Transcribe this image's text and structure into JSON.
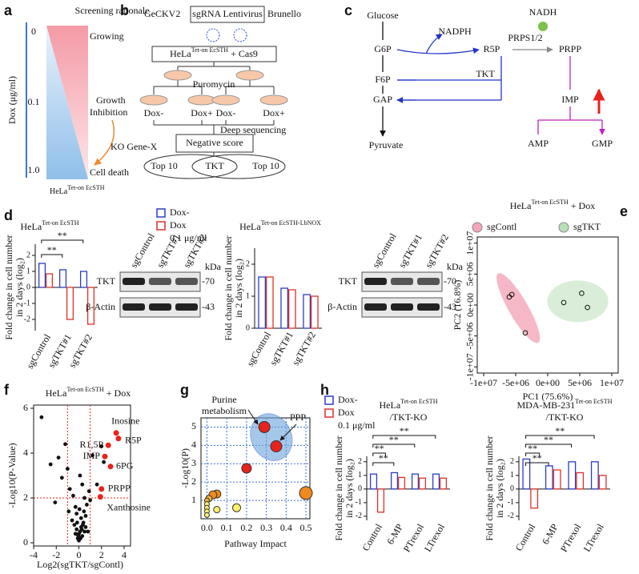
{
  "panels": {
    "a": {
      "label": "a",
      "title": "Screening rationale",
      "axis_label": "Dox (μg/ml)",
      "doses": [
        "0",
        "0.1",
        "1.0"
      ],
      "states": [
        "Growing",
        "Growth",
        "Inhibition",
        "Cell death"
      ],
      "knockout": "KO Gene-X",
      "cell": [
        "HeLa",
        "Tet-on EcSTH"
      ]
    },
    "b": {
      "label": "b",
      "library_left": "GeCKV2",
      "vector": "sgRNA Lentivirus",
      "library_right": "Brunello",
      "cell": [
        "HeLa",
        "Tet-on EcSTH",
        " + Cas9"
      ],
      "selection": "Puromycin",
      "conditions": [
        "Dox-",
        "Dox+",
        "Dox-",
        "Dox+"
      ],
      "step": "Deep sequencing",
      "score": "Negative score",
      "overlap": [
        "Top 10",
        "TKT",
        "Top 10"
      ]
    },
    "c": {
      "label": "c",
      "nodes": [
        "Glucose",
        "G6P",
        "NADPH",
        "R5P",
        "NADH",
        "PRPS1/2",
        "PRPP",
        "F6P",
        "TKT",
        "GAP",
        "IMP",
        "Pyruvate",
        "AMP",
        "GMP"
      ]
    },
    "d": {
      "label": "d",
      "legend": [
        {
          "name": "Dox-",
          "color": "#2b3cc4"
        },
        {
          "name": "Dox",
          "color": "#e0302a"
        }
      ],
      "dose": "0.1 μg/ml",
      "charts": [
        {
          "type": "bar",
          "title": [
            "HeLa",
            "Tet-on EcSTH"
          ],
          "ylabel": [
            "Fold change in cell number",
            "in 2 days (log₂)"
          ],
          "categories": [
            "sgControl",
            "sgTKT#1",
            "sgTKT#2"
          ],
          "ylim": [
            -2.7,
            2.7
          ],
          "yticks": [
            -2,
            -1,
            0,
            1,
            2
          ],
          "series": [
            {
              "color": "#2b3cc4",
              "values": [
                1.5,
                1.1,
                1.0
              ]
            },
            {
              "color": "#e0302a",
              "values": [
                0.85,
                -2.0,
                -2.3
              ]
            }
          ],
          "annotations": [
            "**",
            "**"
          ]
        },
        {
          "type": "bar",
          "title": [
            "HeLa",
            "Tet-on EcSTH-LbNOX"
          ],
          "ylabel": [
            "Fold change in cell number",
            "in 2 days (log₂)"
          ],
          "categories": [
            "sgControl",
            "sgTKT#1",
            "sgTKT#2"
          ],
          "ylim": [
            0,
            2.5
          ],
          "yticks": [
            0,
            1,
            2
          ],
          "series": [
            {
              "color": "#2b3cc4",
              "values": [
                1.6,
                1.25,
                1.05
              ]
            },
            {
              "color": "#e0302a",
              "values": [
                1.6,
                1.2,
                1.0
              ]
            }
          ],
          "annotations": []
        }
      ],
      "blots": [
        {
          "lanes": [
            "sgControl",
            "sgTKT#1",
            "sgTKT#2"
          ],
          "proteins": [
            "TKT",
            "β-Actin"
          ],
          "sizes": [
            "-70",
            "-43"
          ],
          "unit": "kDa"
        },
        {
          "lanes": [
            "sgControl",
            "sgTKT#1",
            "sgTKT#2"
          ],
          "proteins": [
            "TKT",
            "β-Actin"
          ],
          "sizes": [
            "-70",
            "-43"
          ],
          "unit": "kDa"
        }
      ]
    },
    "e": {
      "label": "e",
      "type": "scatter",
      "title": [
        "HeLa",
        "Tet-on EcSTH",
        " + Dox"
      ],
      "xlabel": "PC1 (75.6%)",
      "ylabel": "PC2 (16.8%)",
      "xlim": [
        -11000000,
        11000000
      ],
      "ylim": [
        -11000000,
        11000000
      ],
      "xticks": [
        {
          "value": -10000000,
          "label": "-1e+07"
        },
        {
          "value": -5000000,
          "label": "-5e+06"
        },
        {
          "value": 0,
          "label": "0e+00"
        },
        {
          "value": 5000000,
          "label": "5e+06"
        },
        {
          "value": 10000000,
          "label": "1e+07"
        }
      ],
      "yticks": [
        {
          "value": -10000000,
          "label": "-1e+07"
        },
        {
          "value": -5000000,
          "label": "-5e+06"
        },
        {
          "value": 0,
          "label": "0e+00"
        },
        {
          "value": 5000000,
          "label": "5e+06"
        },
        {
          "value": 10000000,
          "label": "1e+07"
        }
      ],
      "series": [
        {
          "name": "sgContl",
          "color": "#f4a6b8",
          "x": [
            -6000000,
            -5600000,
            -3500000
          ],
          "values": [
            1300000,
            1700000,
            -4500000
          ]
        },
        {
          "name": "sgTKT",
          "color": "#b8e0b8",
          "x": [
            2500000,
            5300000,
            6200000
          ],
          "values": [
            400000,
            1900000,
            -400000
          ]
        }
      ]
    },
    "f": {
      "label": "f",
      "type": "scatter",
      "title": [
        "HeLa",
        "Tet-on EcSTH",
        " + Dox"
      ],
      "xlabel": "Log2(sgTKT/sgContl)",
      "ylabel": "-Log10(P-Value)",
      "xlim": [
        -4,
        4
      ],
      "ylim": [
        0,
        6
      ],
      "xticks": [
        -4,
        -2,
        0,
        2,
        4
      ],
      "yticks": [
        0,
        2,
        4,
        6
      ],
      "thresholds": {
        "x": [
          -1,
          1
        ],
        "y": 2
      },
      "points": {
        "x": [
          -3.3,
          -2.1,
          -1.2,
          -1.5,
          -1.0,
          -0.8,
          -0.5,
          -0.3,
          -0.2,
          0.1,
          0.3,
          0.5,
          0.7,
          0.9,
          1.2,
          1.6,
          2.0,
          -0.6,
          -0.4,
          0.2,
          0.4,
          0.6,
          -0.2,
          0.0,
          0.1,
          0.3,
          -0.1,
          0.2,
          0.5,
          -0.3,
          0.0,
          0.15,
          -0.05,
          0.25,
          0.35,
          -0.15,
          0.05,
          0.45,
          1.0,
          -2.5,
          -1.8,
          2.2,
          0.8,
          -0.9,
          0.6
        ],
        "values": [
          5.6,
          1.8,
          4.4,
          2.9,
          3.3,
          2.4,
          2.1,
          1.6,
          1.3,
          3.0,
          2.6,
          2.0,
          1.7,
          2.3,
          3.9,
          2.6,
          4.3,
          1.0,
          0.8,
          1.1,
          0.9,
          1.2,
          0.6,
          0.4,
          0.5,
          0.3,
          0.2,
          0.7,
          0.5,
          0.4,
          0.1,
          0.2,
          0.3,
          0.6,
          0.8,
          0.9,
          1.5,
          1.4,
          1.9,
          3.5,
          3.8,
          3.6,
          0.5,
          1.4,
          0.7
        ]
      },
      "highlights": {
        "labels": [
          "Inosine",
          "R1,5P",
          "R5P",
          "IMP",
          "6PG",
          "PRPP",
          "Xanthosine"
        ],
        "x": [
          3.3,
          2.6,
          3.5,
          2.3,
          2.8,
          2.0,
          1.9
        ],
        "values": [
          4.9,
          4.35,
          4.65,
          3.85,
          3.4,
          2.4,
          2.05
        ],
        "color": "#e8231c"
      }
    },
    "g": {
      "label": "g",
      "type": "bubble",
      "xlabel": "Pathway Impact",
      "ylabel": "-Log10(P)",
      "xlim": [
        -0.03,
        0.52
      ],
      "ylim": [
        0,
        5.5
      ],
      "xticks": [
        {
          "value": 0,
          "label": "0.0"
        },
        0.1,
        0.2,
        0.3,
        0.4,
        0.5
      ],
      "yticks": [
        1,
        2,
        3,
        4,
        5
      ],
      "grid": true,
      "annotations": [
        "Purine",
        "metabolism",
        "PPP"
      ],
      "x": [
        0.29,
        0.35,
        0.2,
        0.5,
        0.05,
        0.03,
        0.01,
        0.15,
        0.05,
        0,
        0,
        0,
        0,
        0
      ],
      "values": [
        5.0,
        3.95,
        2.75,
        1.4,
        1.35,
        1.3,
        1.1,
        0.6,
        0.5,
        1.0,
        0.8,
        0.6,
        0.4,
        0.2
      ],
      "sizes": [
        7,
        7,
        6,
        8,
        5,
        5,
        4,
        5,
        4,
        3,
        3,
        3,
        3,
        3
      ],
      "colors": [
        "#e8231c",
        "#e8231c",
        "#e8231c",
        "#f08a1c",
        "#f08a1c",
        "#f08a1c",
        "#f5b342",
        "#fff06a",
        "#fff06a",
        "#f5b342",
        "#fff06a",
        "#fff06a",
        "#fff06a",
        "#fff06a"
      ]
    },
    "h": {
      "label": "h",
      "legend": [
        {
          "name": "Dox-",
          "color": "#2b3cc4"
        },
        {
          "name": "Dox",
          "color": "#e0302a"
        }
      ],
      "dose": "0.1 μg/ml",
      "charts": [
        {
          "type": "bar",
          "title": [
            "HeLa",
            "Tet-on EcSTH",
            "/TKT-KO"
          ],
          "ylabel": [
            "Fold change in cell number",
            "in 2 days (log₂)"
          ],
          "categories": [
            "Control",
            "6-MP",
            "PTrexol",
            "LTrexol"
          ],
          "ylim": [
            -2.3,
            2.4
          ],
          "yticks": [
            -2,
            -1,
            0,
            1,
            2
          ],
          "series": [
            {
              "color": "#2b3cc4",
              "values": [
                1.1,
                1.2,
                1.1,
                1.1
              ]
            },
            {
              "color": "#e0302a",
              "values": [
                -1.7,
                0.85,
                0.8,
                0.8
              ]
            }
          ],
          "annotations": [
            "**",
            "**",
            "**",
            "**"
          ]
        },
        {
          "type": "bar",
          "title": [
            "MDA-MB-231",
            "Tet-on EcSTH",
            "/TKT-KO"
          ],
          "ylabel": [
            "Fold change in cell number",
            "in 2 days (log₂)"
          ],
          "categories": [
            "Control",
            "6-MP",
            "PTrexol",
            "LTrexol"
          ],
          "ylim": [
            -2.3,
            2.4
          ],
          "yticks": [
            -2,
            -1,
            0,
            1,
            2
          ],
          "series": [
            {
              "color": "#2b3cc4",
              "values": [
                2.2,
                1.7,
                2.0,
                2.0
              ]
            },
            {
              "color": "#e0302a",
              "values": [
                -1.4,
                1.4,
                1.2,
                1.0
              ]
            }
          ],
          "annotations": [
            "**",
            "**",
            "**",
            "**"
          ]
        }
      ]
    }
  }
}
